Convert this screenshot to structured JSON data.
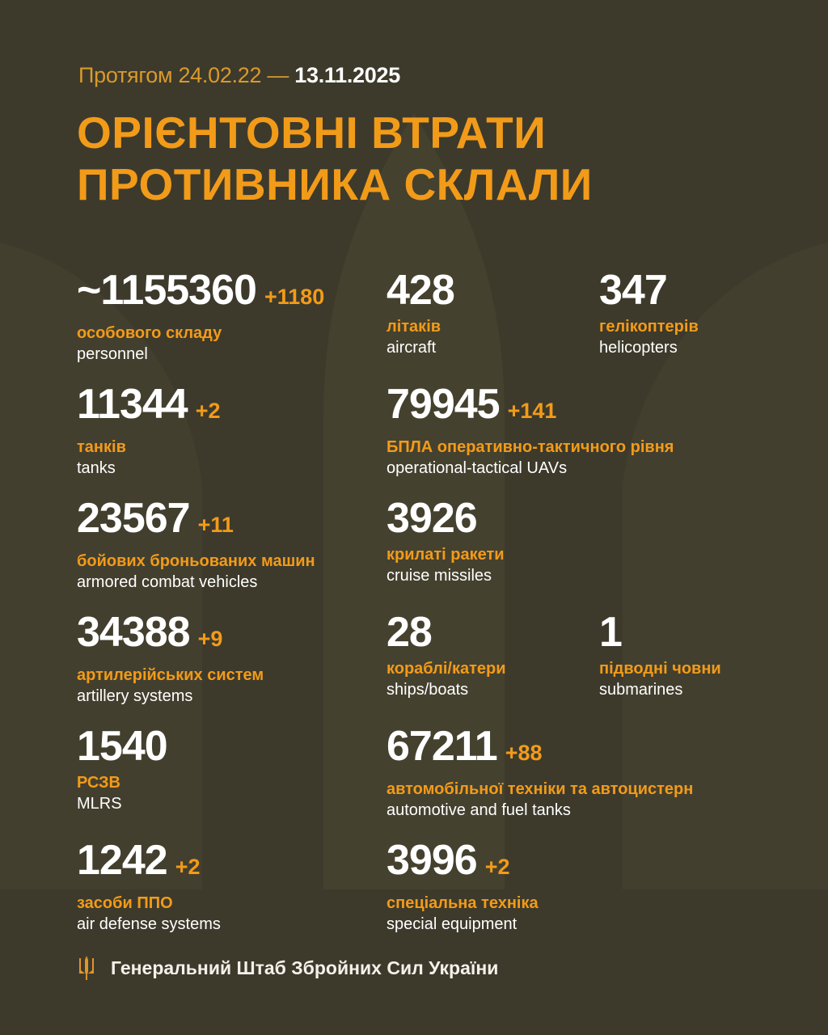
{
  "header": {
    "period_prefix": "Протягом 24.02.22 —",
    "period_end": "13.11.2025",
    "title_line1": "ОРІЄНТОВНІ ВТРАТИ",
    "title_line2": "ПРОТИВНИКА СКЛАЛИ"
  },
  "colors": {
    "background": "#3d3a2c",
    "accent": "#f29b19",
    "text": "#ffffff"
  },
  "items": [
    {
      "value": "~1155360",
      "delta": "+1180",
      "ua": "особового складу",
      "en": "personnel"
    },
    {
      "value": "428",
      "delta": "",
      "ua": "літаків",
      "en": "aircraft"
    },
    {
      "value": "347",
      "delta": "",
      "ua": "гелікоптерів",
      "en": "helicopters"
    },
    {
      "value": "11344",
      "delta": "+2",
      "ua": "танків",
      "en": "tanks"
    },
    {
      "value": "79945",
      "delta": "+141",
      "ua": "БПЛА оперативно-тактичного рівня",
      "en": "operational-tactical UAVs"
    },
    {
      "value": "23567",
      "delta": "+11",
      "ua": "бойових броньованих машин",
      "en": "armored combat vehicles"
    },
    {
      "value": "3926",
      "delta": "",
      "ua": "крилаті ракети",
      "en": "cruise missiles"
    },
    {
      "value": "34388",
      "delta": "+9",
      "ua": "артилерійських систем",
      "en": "artillery systems"
    },
    {
      "value": "28",
      "delta": "",
      "ua": "кораблі/катери",
      "en": "ships/boats"
    },
    {
      "value": "1",
      "delta": "",
      "ua": "підводні човни",
      "en": "submarines"
    },
    {
      "value": "1540",
      "delta": "",
      "ua": "РСЗВ",
      "en": "MLRS"
    },
    {
      "value": "67211",
      "delta": "+88",
      "ua": "автомобільної техніки та автоцистерн",
      "en": "automotive and fuel tanks"
    },
    {
      "value": "1242",
      "delta": "+2",
      "ua": "засоби ППО",
      "en": "air defense systems"
    },
    {
      "value": "3996",
      "delta": "+2",
      "ua": "спеціальна техніка",
      "en": "special equipment"
    }
  ],
  "footer": {
    "icon": "trident-icon",
    "text": "Генеральний Штаб Збройних Сил України"
  }
}
